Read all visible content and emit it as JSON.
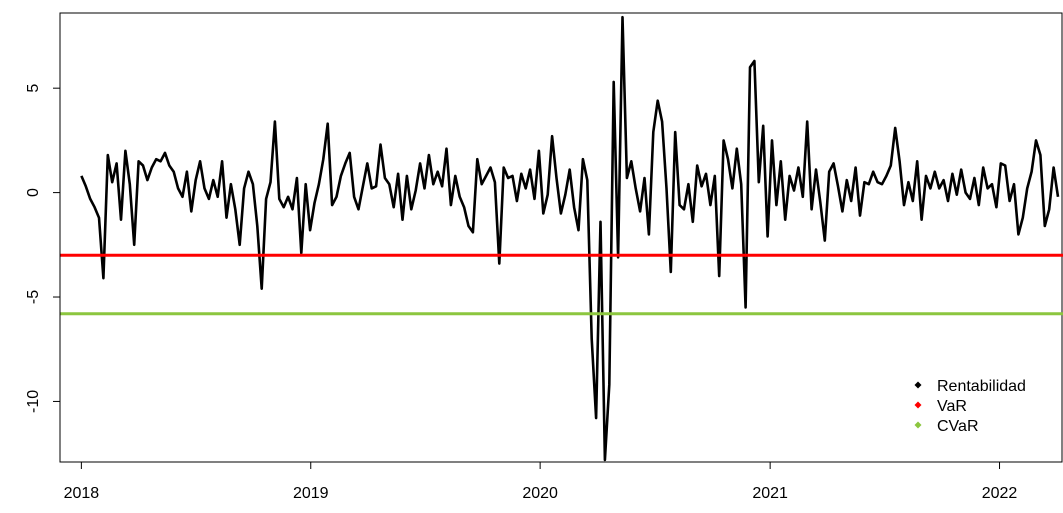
{
  "chart_data": {
    "type": "line",
    "title": "",
    "xlabel": "",
    "ylabel": "",
    "x_ticks": [
      "2018",
      "2019",
      "2020",
      "2021",
      "2022"
    ],
    "y_ticks": [
      "-10",
      "-5",
      "0",
      "5"
    ],
    "xlim": [
      "2017-11-28",
      "2022-04-12"
    ],
    "ylim": [
      -12.9,
      8.6
    ],
    "grid": false,
    "legend_position": "bottom-right",
    "series": [
      {
        "name": "Rentabilidad",
        "color": "#000000",
        "points": [
          [
            "2018-01-01",
            0.8
          ],
          [
            "2018-01-08",
            0.3
          ],
          [
            "2018-01-15",
            -0.3
          ],
          [
            "2018-01-22",
            -0.7
          ],
          [
            "2018-01-29",
            -1.2
          ],
          [
            "2018-02-05",
            -4.1
          ],
          [
            "2018-02-12",
            1.8
          ],
          [
            "2018-02-19",
            0.5
          ],
          [
            "2018-02-26",
            1.4
          ],
          [
            "2018-03-05",
            -1.3
          ],
          [
            "2018-03-12",
            2.0
          ],
          [
            "2018-03-19",
            0.4
          ],
          [
            "2018-03-26",
            -2.5
          ],
          [
            "2018-04-02",
            1.5
          ],
          [
            "2018-04-09",
            1.3
          ],
          [
            "2018-04-16",
            0.6
          ],
          [
            "2018-04-23",
            1.2
          ],
          [
            "2018-04-30",
            1.6
          ],
          [
            "2018-05-07",
            1.5
          ],
          [
            "2018-05-14",
            1.9
          ],
          [
            "2018-05-21",
            1.3
          ],
          [
            "2018-05-28",
            1.0
          ],
          [
            "2018-06-04",
            0.2
          ],
          [
            "2018-06-11",
            -0.2
          ],
          [
            "2018-06-18",
            1.0
          ],
          [
            "2018-06-25",
            -0.9
          ],
          [
            "2018-07-02",
            0.6
          ],
          [
            "2018-07-09",
            1.5
          ],
          [
            "2018-07-16",
            0.2
          ],
          [
            "2018-07-23",
            -0.3
          ],
          [
            "2018-07-30",
            0.6
          ],
          [
            "2018-08-06",
            -0.2
          ],
          [
            "2018-08-13",
            1.5
          ],
          [
            "2018-08-20",
            -1.2
          ],
          [
            "2018-08-27",
            0.4
          ],
          [
            "2018-09-03",
            -0.8
          ],
          [
            "2018-09-10",
            -2.5
          ],
          [
            "2018-09-17",
            0.2
          ],
          [
            "2018-09-24",
            1.0
          ],
          [
            "2018-10-01",
            0.4
          ],
          [
            "2018-10-08",
            -1.6
          ],
          [
            "2018-10-15",
            -4.6
          ],
          [
            "2018-10-22",
            -0.3
          ],
          [
            "2018-10-29",
            0.5
          ],
          [
            "2018-11-05",
            3.4
          ],
          [
            "2018-11-12",
            -0.3
          ],
          [
            "2018-11-19",
            -0.7
          ],
          [
            "2018-11-26",
            -0.2
          ],
          [
            "2018-12-03",
            -0.8
          ],
          [
            "2018-12-10",
            0.7
          ],
          [
            "2018-12-17",
            -2.9
          ],
          [
            "2018-12-24",
            0.4
          ],
          [
            "2018-12-31",
            -1.8
          ],
          [
            "2019-01-07",
            -0.5
          ],
          [
            "2019-01-14",
            0.4
          ],
          [
            "2019-01-21",
            1.6
          ],
          [
            "2019-01-28",
            3.3
          ],
          [
            "2019-02-04",
            -0.6
          ],
          [
            "2019-02-11",
            -0.2
          ],
          [
            "2019-02-18",
            0.8
          ],
          [
            "2019-02-25",
            1.4
          ],
          [
            "2019-03-04",
            1.9
          ],
          [
            "2019-03-11",
            -0.2
          ],
          [
            "2019-03-18",
            -0.8
          ],
          [
            "2019-03-25",
            0.3
          ],
          [
            "2019-04-01",
            1.4
          ],
          [
            "2019-04-08",
            0.2
          ],
          [
            "2019-04-15",
            0.3
          ],
          [
            "2019-04-22",
            2.3
          ],
          [
            "2019-04-29",
            0.7
          ],
          [
            "2019-05-06",
            0.4
          ],
          [
            "2019-05-13",
            -0.7
          ],
          [
            "2019-05-20",
            0.9
          ],
          [
            "2019-05-27",
            -1.3
          ],
          [
            "2019-06-03",
            0.8
          ],
          [
            "2019-06-10",
            -0.8
          ],
          [
            "2019-06-17",
            0.1
          ],
          [
            "2019-06-24",
            1.4
          ],
          [
            "2019-07-01",
            0.2
          ],
          [
            "2019-07-08",
            1.8
          ],
          [
            "2019-07-15",
            0.4
          ],
          [
            "2019-07-22",
            1.0
          ],
          [
            "2019-07-29",
            0.3
          ],
          [
            "2019-08-05",
            2.1
          ],
          [
            "2019-08-12",
            -0.6
          ],
          [
            "2019-08-19",
            0.8
          ],
          [
            "2019-08-26",
            -0.2
          ],
          [
            "2019-09-02",
            -0.7
          ],
          [
            "2019-09-09",
            -1.6
          ],
          [
            "2019-09-16",
            -1.9
          ],
          [
            "2019-09-23",
            1.6
          ],
          [
            "2019-09-30",
            0.4
          ],
          [
            "2019-10-07",
            0.8
          ],
          [
            "2019-10-14",
            1.2
          ],
          [
            "2019-10-21",
            0.5
          ],
          [
            "2019-10-28",
            -3.4
          ],
          [
            "2019-11-04",
            1.2
          ],
          [
            "2019-11-11",
            0.7
          ],
          [
            "2019-11-18",
            0.8
          ],
          [
            "2019-11-25",
            -0.4
          ],
          [
            "2019-12-02",
            0.9
          ],
          [
            "2019-12-09",
            0.2
          ],
          [
            "2019-12-16",
            1.1
          ],
          [
            "2019-12-23",
            -0.3
          ],
          [
            "2019-12-30",
            2.0
          ],
          [
            "2020-01-06",
            -1.0
          ],
          [
            "2020-01-13",
            -0.1
          ],
          [
            "2020-01-20",
            2.7
          ],
          [
            "2020-01-27",
            0.7
          ],
          [
            "2020-02-03",
            -1.0
          ],
          [
            "2020-02-10",
            -0.1
          ],
          [
            "2020-02-17",
            1.1
          ],
          [
            "2020-02-24",
            -0.7
          ],
          [
            "2020-03-02",
            -1.8
          ],
          [
            "2020-03-09",
            1.6
          ],
          [
            "2020-03-16",
            0.6
          ],
          [
            "2020-03-23",
            -7.0
          ],
          [
            "2020-03-30",
            -10.8
          ],
          [
            "2020-04-06",
            -1.4
          ],
          [
            "2020-04-13",
            -12.8
          ],
          [
            "2020-04-20",
            -9.2
          ],
          [
            "2020-04-27",
            5.3
          ],
          [
            "2020-05-04",
            -3.1
          ],
          [
            "2020-05-11",
            8.4
          ],
          [
            "2020-05-18",
            0.7
          ],
          [
            "2020-05-25",
            1.5
          ],
          [
            "2020-06-01",
            0.2
          ],
          [
            "2020-06-08",
            -0.9
          ],
          [
            "2020-06-15",
            0.7
          ],
          [
            "2020-06-22",
            -2.0
          ],
          [
            "2020-06-29",
            2.9
          ],
          [
            "2020-07-06",
            4.4
          ],
          [
            "2020-07-13",
            3.4
          ],
          [
            "2020-07-20",
            0.2
          ],
          [
            "2020-07-27",
            -3.8
          ],
          [
            "2020-08-03",
            2.9
          ],
          [
            "2020-08-10",
            -0.6
          ],
          [
            "2020-08-17",
            -0.8
          ],
          [
            "2020-08-24",
            0.4
          ],
          [
            "2020-08-31",
            -1.4
          ],
          [
            "2020-09-07",
            1.3
          ],
          [
            "2020-09-14",
            0.3
          ],
          [
            "2020-09-21",
            0.9
          ],
          [
            "2020-09-28",
            -0.6
          ],
          [
            "2020-10-05",
            0.8
          ],
          [
            "2020-10-12",
            -4.0
          ],
          [
            "2020-10-19",
            2.5
          ],
          [
            "2020-10-26",
            1.6
          ],
          [
            "2020-11-02",
            0.2
          ],
          [
            "2020-11-09",
            2.1
          ],
          [
            "2020-11-16",
            0.4
          ],
          [
            "2020-11-23",
            -5.5
          ],
          [
            "2020-11-30",
            6.0
          ],
          [
            "2020-12-07",
            6.3
          ],
          [
            "2020-12-14",
            0.5
          ],
          [
            "2020-12-21",
            3.2
          ],
          [
            "2020-12-28",
            -2.1
          ],
          [
            "2021-01-04",
            2.5
          ],
          [
            "2021-01-11",
            -0.6
          ],
          [
            "2021-01-18",
            1.5
          ],
          [
            "2021-01-25",
            -1.3
          ],
          [
            "2021-02-01",
            0.8
          ],
          [
            "2021-02-08",
            0.1
          ],
          [
            "2021-02-15",
            1.2
          ],
          [
            "2021-02-22",
            -0.2
          ],
          [
            "2021-03-01",
            3.4
          ],
          [
            "2021-03-08",
            -0.8
          ],
          [
            "2021-03-15",
            1.1
          ],
          [
            "2021-03-22",
            -0.5
          ],
          [
            "2021-03-29",
            -2.3
          ],
          [
            "2021-04-05",
            1.0
          ],
          [
            "2021-04-12",
            1.4
          ],
          [
            "2021-04-19",
            0.3
          ],
          [
            "2021-04-26",
            -0.9
          ],
          [
            "2021-05-03",
            0.6
          ],
          [
            "2021-05-10",
            -0.4
          ],
          [
            "2021-05-17",
            1.2
          ],
          [
            "2021-05-24",
            -1.1
          ],
          [
            "2021-05-31",
            0.5
          ],
          [
            "2021-06-07",
            0.4
          ],
          [
            "2021-06-14",
            1.0
          ],
          [
            "2021-06-21",
            0.5
          ],
          [
            "2021-06-28",
            0.4
          ],
          [
            "2021-07-05",
            0.8
          ],
          [
            "2021-07-12",
            1.3
          ],
          [
            "2021-07-19",
            3.1
          ],
          [
            "2021-07-26",
            1.5
          ],
          [
            "2021-08-02",
            -0.6
          ],
          [
            "2021-08-09",
            0.5
          ],
          [
            "2021-08-16",
            -0.4
          ],
          [
            "2021-08-23",
            1.5
          ],
          [
            "2021-08-30",
            -1.3
          ],
          [
            "2021-09-06",
            0.8
          ],
          [
            "2021-09-13",
            0.2
          ],
          [
            "2021-09-20",
            1.0
          ],
          [
            "2021-09-27",
            0.2
          ],
          [
            "2021-10-04",
            0.6
          ],
          [
            "2021-10-11",
            -0.4
          ],
          [
            "2021-10-18",
            0.9
          ],
          [
            "2021-10-25",
            -0.1
          ],
          [
            "2021-11-01",
            1.1
          ],
          [
            "2021-11-08",
            0.0
          ],
          [
            "2021-11-15",
            -0.3
          ],
          [
            "2021-11-22",
            0.7
          ],
          [
            "2021-11-29",
            -0.6
          ],
          [
            "2021-12-06",
            1.2
          ],
          [
            "2021-12-13",
            0.2
          ],
          [
            "2021-12-20",
            0.4
          ],
          [
            "2021-12-27",
            -0.7
          ],
          [
            "2022-01-03",
            1.4
          ],
          [
            "2022-01-10",
            1.3
          ],
          [
            "2022-01-17",
            -0.4
          ],
          [
            "2022-01-24",
            0.4
          ],
          [
            "2022-01-31",
            -2.0
          ],
          [
            "2022-02-07",
            -1.2
          ],
          [
            "2022-02-14",
            0.2
          ],
          [
            "2022-02-21",
            1.0
          ],
          [
            "2022-02-28",
            2.5
          ],
          [
            "2022-03-07",
            1.8
          ],
          [
            "2022-03-14",
            -1.6
          ],
          [
            "2022-03-21",
            -0.8
          ],
          [
            "2022-03-28",
            1.2
          ],
          [
            "2022-04-04",
            -0.2
          ]
        ]
      },
      {
        "name": "VaR",
        "color": "#ff0000",
        "value": -3.0
      },
      {
        "name": "CVaR",
        "color": "#8cc63f",
        "value": -5.8
      }
    ]
  }
}
